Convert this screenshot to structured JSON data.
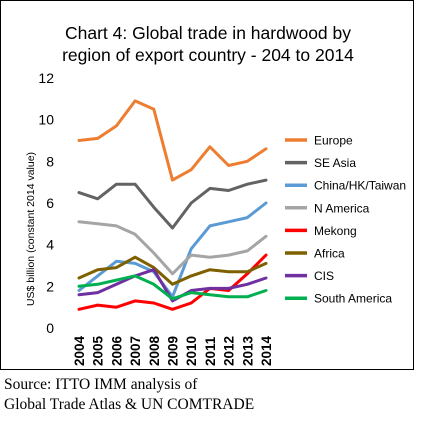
{
  "chart_data": {
    "type": "line",
    "title_lines": [
      "Chart 4: Global trade in hardwood by",
      "region of export country - 204 to 2014"
    ],
    "xlabel": "",
    "ylabel": "US$ billion (constant 2014 value)",
    "ylim": [
      0,
      12
    ],
    "yticks": [
      0,
      2,
      4,
      6,
      8,
      10,
      12
    ],
    "x": [
      "2004",
      "2005",
      "2006",
      "2007",
      "2008",
      "2009",
      "2010",
      "2011",
      "2012",
      "2013",
      "2014"
    ],
    "grid": false,
    "legend_position": "right",
    "series": [
      {
        "name": "Europe",
        "color": "#ED7D31",
        "values": [
          9.0,
          9.1,
          9.7,
          10.9,
          10.5,
          7.1,
          7.6,
          8.7,
          7.8,
          8.0,
          8.6
        ]
      },
      {
        "name": "SE Asia",
        "color": "#636363",
        "values": [
          6.5,
          6.2,
          6.9,
          6.9,
          5.8,
          4.8,
          6.0,
          6.7,
          6.6,
          6.9,
          7.1
        ]
      },
      {
        "name": "China/HK/Taiwan",
        "color": "#5B9BD5",
        "values": [
          1.8,
          2.5,
          3.2,
          3.1,
          2.7,
          1.5,
          3.8,
          4.9,
          5.1,
          5.3,
          6.0
        ]
      },
      {
        "name": "N America",
        "color": "#A5A5A5",
        "values": [
          5.1,
          5.0,
          4.9,
          4.5,
          3.6,
          2.6,
          3.5,
          3.4,
          3.5,
          3.7,
          4.4
        ]
      },
      {
        "name": "Mekong",
        "color": "#FF0000",
        "values": [
          0.9,
          1.1,
          1.0,
          1.3,
          1.2,
          0.9,
          1.2,
          1.9,
          1.8,
          2.6,
          3.5
        ]
      },
      {
        "name": "Africa",
        "color": "#7F6000",
        "values": [
          2.4,
          2.8,
          2.9,
          3.4,
          2.9,
          2.1,
          2.5,
          2.8,
          2.7,
          2.7,
          3.1
        ]
      },
      {
        "name": "CIS",
        "color": "#7030A0",
        "values": [
          1.6,
          1.7,
          2.1,
          2.5,
          2.8,
          1.3,
          1.8,
          1.9,
          1.9,
          2.1,
          2.4
        ]
      },
      {
        "name": "South America",
        "color": "#00B050",
        "values": [
          2.0,
          2.1,
          2.3,
          2.5,
          2.1,
          1.4,
          1.7,
          1.6,
          1.5,
          1.5,
          1.8
        ]
      }
    ]
  },
  "source": {
    "line1": "Source: ITTO IMM analysis of",
    "line2": "Global Trade Atlas & UN COMTRADE"
  }
}
